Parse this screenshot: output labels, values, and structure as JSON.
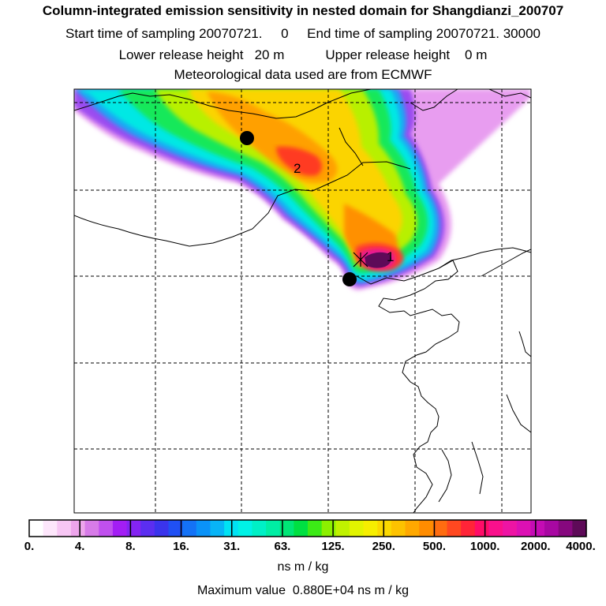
{
  "header": {
    "title": "Column-integrated emission sensitivity in nested domain for Shangdianzi_200707",
    "sampling_line": "Start time of sampling 20070721.     0     End time of sampling 20070721. 30000",
    "release_line": "Lower release height   20 m           Upper release height    0 m",
    "met_line": "Meteorological data used are from ECMWF"
  },
  "map": {
    "labels": {
      "max_label_1": "1",
      "max_label_2": "2"
    },
    "markers": [
      {
        "name": "trajectory-point-north"
      },
      {
        "name": "receptor-point-shangdianzi"
      }
    ]
  },
  "colorbar": {
    "tick_labels": [
      "0.",
      "4.",
      "8.",
      "16.",
      "31.",
      "63.",
      "125.",
      "250.",
      "500.",
      "1000.",
      "2000.",
      "4000."
    ],
    "colors": [
      "#ffffff",
      "#fde6fb",
      "#f7c6f4",
      "#eea5ec",
      "#d77be8",
      "#c050ee",
      "#a31ef4",
      "#8424f2",
      "#5b2ef0",
      "#3a34ec",
      "#2050f4",
      "#1472f6",
      "#0a92f8",
      "#08b4f6",
      "#00e2f4",
      "#00f2e6",
      "#00f0c6",
      "#00eea4",
      "#00e676",
      "#00e042",
      "#3cea16",
      "#8cf000",
      "#c0f200",
      "#e2f400",
      "#f6ee00",
      "#fbd800",
      "#fdc200",
      "#ffa800",
      "#ff8c00",
      "#ff6c10",
      "#ff4820",
      "#ff2438",
      "#ff0c68",
      "#fa108c",
      "#ee14a4",
      "#dc10b4",
      "#c40cb4",
      "#a808a2",
      "#86087e",
      "#5e0a58"
    ],
    "unit": "ns m / kg",
    "max_value_text": "Maximum value  0.880E+04 ns m / kg"
  }
}
